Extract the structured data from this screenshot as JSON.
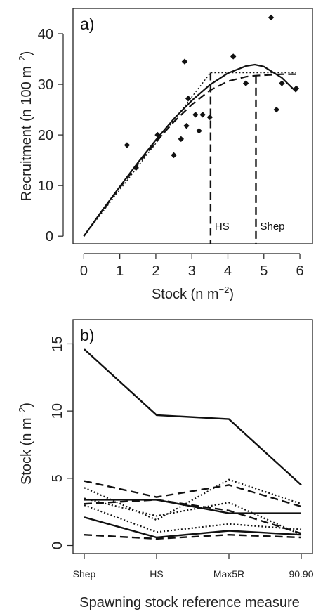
{
  "chart_data": [
    {
      "type": "scatter",
      "panel_label": "a)",
      "xlabel": "Stock (n m",
      "xlabel_sup": "−2",
      "xlabel_end": ")",
      "ylabel": "Recruitment (n 100 m",
      "ylabel_sup": "−2",
      "ylabel_end": ")",
      "xlim": [
        -0.3,
        6.35
      ],
      "ylim": [
        -1.5,
        45
      ],
      "xticks": [
        0,
        1,
        2,
        3,
        4,
        5,
        6
      ],
      "yticks": [
        0,
        10,
        20,
        30,
        40
      ],
      "points": {
        "x": [
          1.2,
          1.45,
          2.05,
          2.5,
          2.7,
          2.8,
          2.85,
          2.9,
          3.1,
          3.2,
          3.3,
          3.5,
          4.15,
          4.5,
          5.2,
          5.35,
          5.5,
          5.9
        ],
        "y": [
          18,
          13.5,
          20,
          16,
          19.2,
          34.5,
          21.8,
          27.2,
          24,
          20.8,
          24,
          23.5,
          35.5,
          30.2,
          43.2,
          25,
          30.2,
          29.2
        ]
      },
      "curves": [
        {
          "style": "solid",
          "x": [
            0,
            0.5,
            1,
            1.5,
            2,
            2.5,
            3,
            3.5,
            4,
            4.5,
            4.75,
            5,
            5.5,
            5.9
          ],
          "y": [
            0,
            5,
            9.8,
            14.5,
            19,
            23.2,
            26.8,
            29.9,
            32.2,
            33.6,
            33.9,
            33.5,
            31.3,
            28.5
          ]
        },
        {
          "style": "dashed",
          "x": [
            0,
            0.5,
            1,
            1.5,
            2,
            2.5,
            3,
            3.5,
            4,
            4.5,
            4.75,
            5,
            5.5,
            5.9
          ],
          "y": [
            0,
            4.9,
            9.6,
            14.2,
            18.6,
            22.6,
            26,
            28.8,
            30.6,
            31.5,
            31.7,
            31.8,
            32,
            32
          ]
        },
        {
          "style": "dotted",
          "x": [
            0,
            3.52,
            5.9
          ],
          "y": [
            0,
            32.3,
            32.3
          ]
        }
      ],
      "reference_lines": [
        {
          "label": "HS",
          "x": 3.52,
          "y": 32.3
        },
        {
          "label": "Shep",
          "x": 4.78,
          "y": 31.7
        }
      ]
    },
    {
      "type": "line",
      "panel_label": "b)",
      "xlabel": "Spawning stock reference measure",
      "ylabel": "Stock (n m",
      "ylabel_sup": "−2",
      "ylabel_end": ")",
      "categories": [
        "Shep",
        "HS",
        "Max5R",
        "90.90"
      ],
      "ylim": [
        -0.6,
        16.8
      ],
      "yticks": [
        0,
        5,
        10,
        15
      ],
      "series": [
        {
          "style": "solid",
          "values": [
            14.6,
            9.7,
            9.4,
            4.5
          ]
        },
        {
          "style": "solid",
          "values": [
            3.4,
            3.4,
            2.4,
            2.4
          ]
        },
        {
          "style": "solid",
          "values": [
            2.1,
            0.6,
            1.1,
            0.8
          ]
        },
        {
          "style": "dashed",
          "values": [
            4.8,
            3.6,
            4.5,
            2.9
          ]
        },
        {
          "style": "dashed",
          "values": [
            3.1,
            3.4,
            2.6,
            0.9
          ]
        },
        {
          "style": "dashed",
          "values": [
            0.8,
            0.5,
            0.8,
            0.6
          ]
        },
        {
          "style": "dotted",
          "values": [
            4.3,
            1.9,
            4.9,
            3.1
          ]
        },
        {
          "style": "dotted",
          "values": [
            3.5,
            2.2,
            3.2,
            0.8
          ]
        },
        {
          "style": "dotted",
          "values": [
            3.0,
            1.0,
            1.6,
            1.2
          ]
        }
      ]
    }
  ]
}
